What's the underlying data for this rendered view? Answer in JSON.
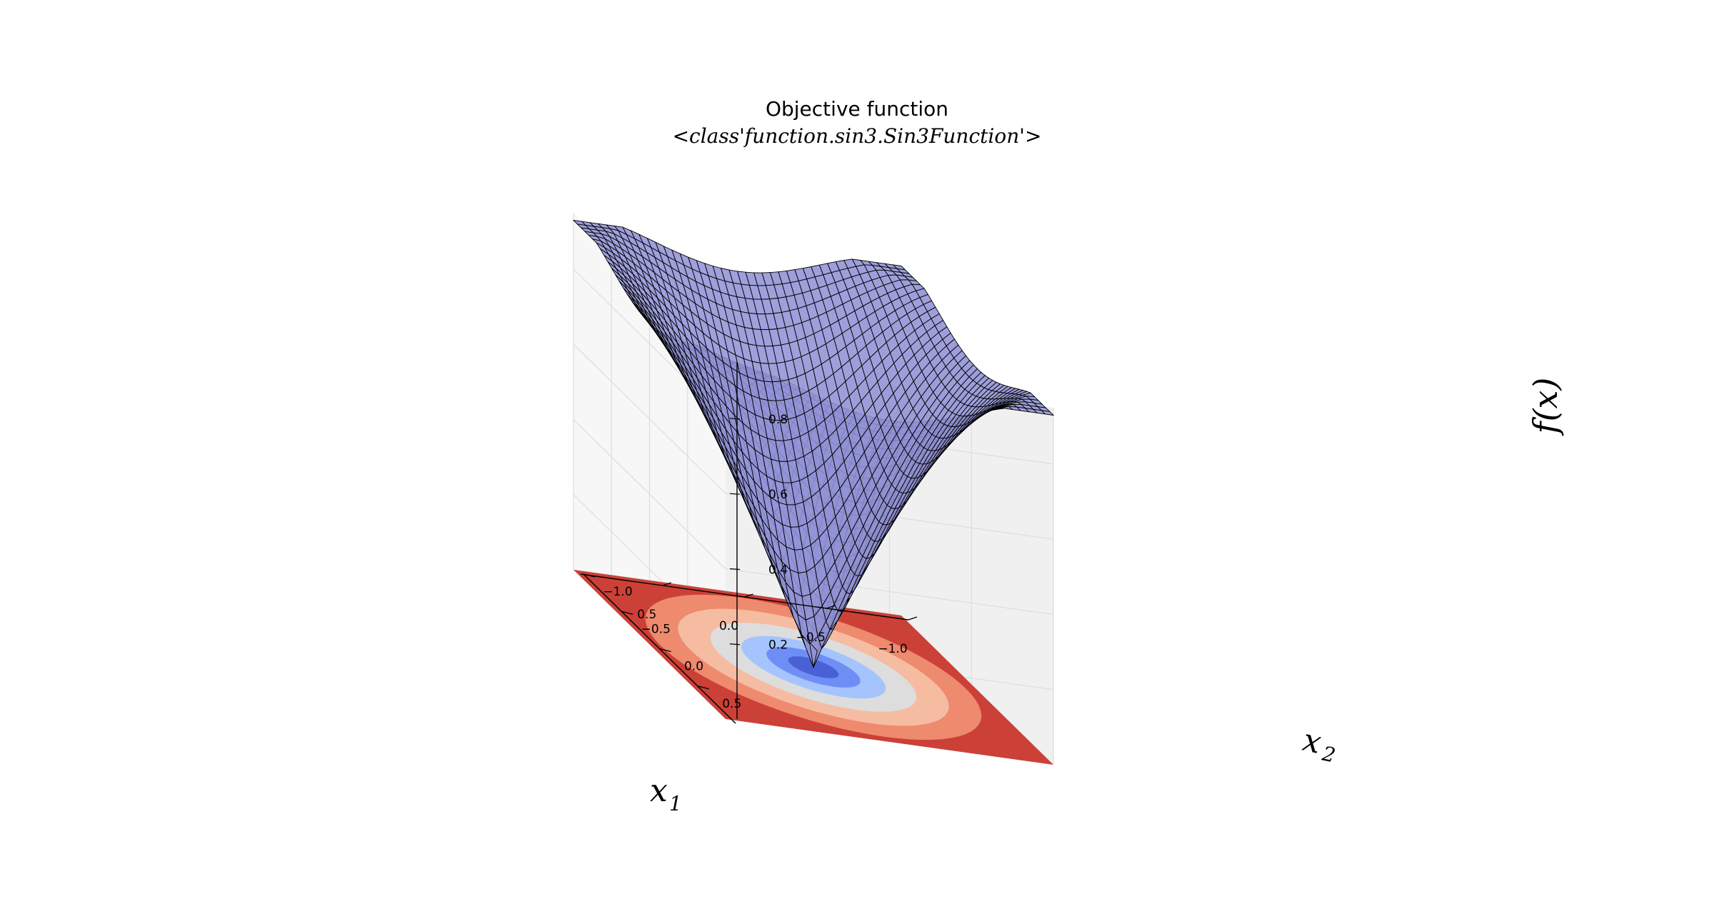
{
  "chart_data": {
    "type": "surface",
    "title": "Objective function",
    "subtitle": "<class'function.sin3.Sin3Function'>",
    "xlabel": "x",
    "xlabel_sub": "1",
    "ylabel": "x",
    "ylabel_sub": "2",
    "zlabel": "f(x)",
    "xlim": [
      -1.0,
      1.0
    ],
    "ylim": [
      -1.0,
      1.0
    ],
    "zlim": [
      0.0,
      0.95
    ],
    "x_ticks": [
      -1.0,
      -0.5,
      0.0,
      0.5
    ],
    "x_tick_labels": [
      "−1.0",
      "−0.5",
      "0.0",
      "0.5"
    ],
    "y_ticks": [
      -1.0,
      -0.5,
      0.0,
      0.5
    ],
    "y_tick_labels": [
      "−1.0",
      "−0.5",
      "0.0",
      "0.5"
    ],
    "z_ticks": [
      0.2,
      0.4,
      0.6,
      0.8
    ],
    "z_tick_labels": [
      "0.2",
      "0.4",
      "0.6",
      "0.8"
    ],
    "grid": true,
    "surface_color": "#9fa0ea",
    "surface_edge_color": "#000000",
    "surface_samples": {
      "x": [
        -1.0,
        -0.5,
        0.0,
        0.5,
        1.0
      ],
      "y": [
        -1.0,
        -0.5,
        0.0,
        0.5,
        1.0
      ],
      "z": [
        [
          0.92,
          0.78,
          0.7,
          0.78,
          0.92
        ],
        [
          0.78,
          0.52,
          0.35,
          0.52,
          0.78
        ],
        [
          0.7,
          0.35,
          0.0,
          0.35,
          0.7
        ],
        [
          0.78,
          0.52,
          0.35,
          0.52,
          0.78
        ],
        [
          0.92,
          0.78,
          0.7,
          0.78,
          0.92
        ]
      ]
    },
    "contour_levels": [
      0.0,
      0.1,
      0.2,
      0.3,
      0.45,
      0.6,
      0.75,
      0.9
    ],
    "contour_colors": [
      "#4a61d6",
      "#6f8ef5",
      "#a5c4fd",
      "#dddddd",
      "#f5bca2",
      "#ee8a6e",
      "#cb4037"
    ]
  }
}
